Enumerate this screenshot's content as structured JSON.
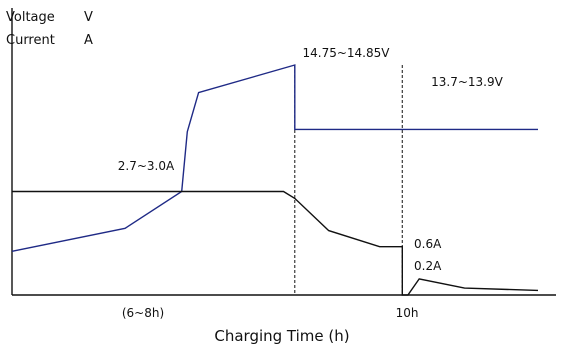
{
  "chart_data": {
    "type": "line",
    "title": "",
    "ylabel_lines": [
      "Voltage",
      "V",
      "Current",
      "A"
    ],
    "xlabel": "Charging Time (h)",
    "x_ticks": [
      "(6~8h)",
      "10h"
    ],
    "grid": false,
    "colors": {
      "voltage": "#1f2a86",
      "current": "#111111",
      "axis": "#111111",
      "guide": "#111111"
    },
    "series": [
      {
        "kind": "voltage",
        "points": [
          [
            0,
            0.19
          ],
          [
            0.4,
            0.29
          ],
          [
            0.6,
            0.45
          ],
          [
            0.62,
            0.71
          ],
          [
            0.66,
            0.88
          ],
          [
            1.0,
            1.0
          ],
          [
            1.0,
            0.72
          ],
          [
            1.38,
            0.72
          ],
          [
            1.86,
            0.72
          ]
        ],
        "labels": [
          {
            "text": "14.75~14.85V",
            "at": 1.0
          },
          {
            "text": "13.7~13.9V",
            "at": 1.4
          }
        ]
      },
      {
        "kind": "current",
        "points": [
          [
            0,
            0.45
          ],
          [
            0.96,
            0.45
          ],
          [
            1.0,
            0.42
          ],
          [
            1.12,
            0.28
          ],
          [
            1.3,
            0.21
          ],
          [
            1.38,
            0.21
          ],
          [
            1.38,
            0.0
          ],
          [
            1.4,
            0.0
          ],
          [
            1.44,
            0.07
          ],
          [
            1.6,
            0.03
          ],
          [
            1.86,
            0.02
          ]
        ],
        "labels": [
          {
            "text": "2.7~3.0A",
            "at": 0.45
          },
          {
            "text": "0.6A",
            "at": 1.38
          },
          {
            "text": "0.2A",
            "at": 1.39
          }
        ]
      }
    ]
  }
}
